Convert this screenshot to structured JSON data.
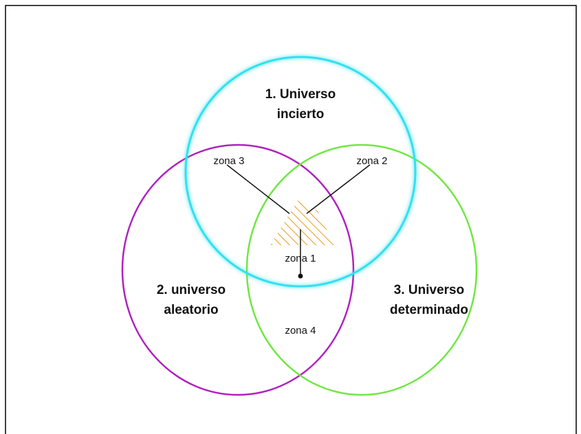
{
  "circles": [
    {
      "label_lines": [
        "1. Universo",
        "incierto"
      ]
    },
    {
      "label_lines": [
        "2. universo",
        "aleatorio"
      ]
    },
    {
      "label_lines": [
        "3. Universo",
        "determinado"
      ]
    }
  ],
  "zones": [
    {
      "label": "zona 1"
    },
    {
      "label": "zona 2"
    },
    {
      "label": "zona 3"
    },
    {
      "label": "zona 4"
    }
  ]
}
